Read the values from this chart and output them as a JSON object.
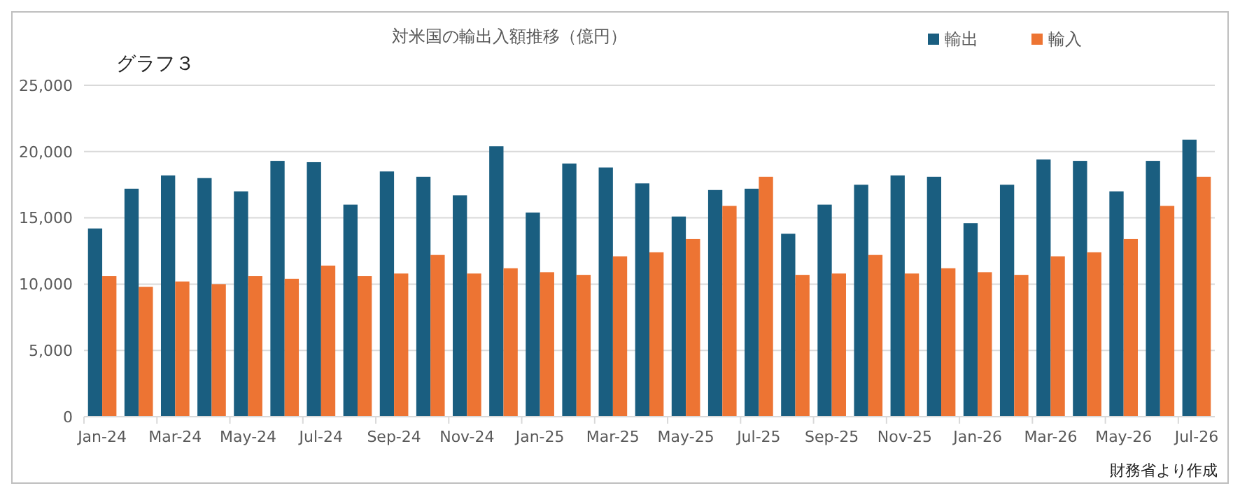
{
  "chart_data": {
    "type": "bar",
    "title": "対米国の輸出入額推移（億円）",
    "annotations": [
      "グラフ３",
      "財務省より作成"
    ],
    "categories": [
      "Jan-24",
      null,
      "Mar-24",
      null,
      "May-24",
      null,
      "Jul-24",
      null,
      "Sep-24",
      null,
      "Nov-24",
      null,
      "Jan-25",
      null,
      "Mar-25",
      null,
      "May-25",
      null,
      "Jul-25",
      null,
      "Sep-25",
      null,
      "Nov-25",
      null,
      "Jan-26",
      null,
      "Mar-26",
      null,
      "May-26",
      null,
      "Jul-26"
    ],
    "series": [
      {
        "name": "輸出",
        "color": "#1a5e80",
        "values": [
          14200,
          17200,
          18200,
          18000,
          17000,
          19300,
          19200,
          16000,
          18500,
          18100,
          16700,
          20400,
          15400,
          19100,
          18800,
          17600,
          15100,
          17100,
          17200,
          13800,
          16000,
          17500,
          18200,
          18100,
          14600,
          17500,
          19400,
          19300,
          17000,
          19300,
          20900
        ]
      },
      {
        "name": "輸入",
        "color": "#ed7433",
        "values": [
          10600,
          9800,
          10200,
          10000,
          10600,
          10400,
          11400,
          10600,
          10800,
          12200,
          10800,
          11200,
          10900,
          10700,
          12100,
          12400,
          13400,
          15900,
          18100,
          10700,
          10800,
          12200,
          10800,
          11200,
          10900,
          10700,
          12100,
          12400,
          13400,
          15900,
          18100
        ]
      }
    ],
    "ylim": [
      0,
      25000
    ],
    "yticks": [
      {
        "value": 0,
        "label": "0"
      },
      {
        "value": 5000,
        "label": "5,000"
      },
      {
        "value": 10000,
        "label": "10,000"
      },
      {
        "value": 15000,
        "label": "15,000"
      },
      {
        "value": 20000,
        "label": "20,000"
      },
      {
        "value": 25000,
        "label": "25,000"
      }
    ],
    "grid": "y",
    "legend": "top right"
  }
}
